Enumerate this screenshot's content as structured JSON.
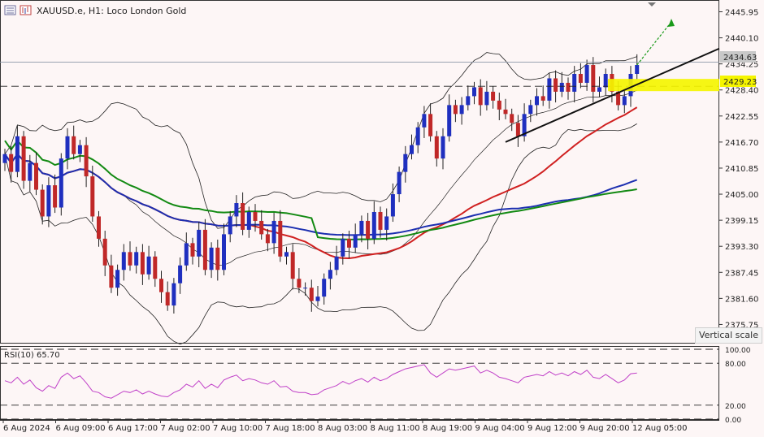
{
  "header": {
    "title": "XAUUSD.e, H1:  Loco London Gold"
  },
  "tooltip": "Vertical scale",
  "chart_data": {
    "type": "candlestick",
    "symbol": "XAUUSD.e",
    "timeframe": "H1",
    "price_axis": {
      "ticks": [
        "2445.95",
        "2440.10",
        "2434.25",
        "2428.40",
        "2422.55",
        "2416.70",
        "2410.85",
        "2405.00",
        "2399.15",
        "2393.30",
        "2387.45",
        "2381.60",
        "2375.75"
      ],
      "ylim": [
        2372.0,
        2447.5
      ]
    },
    "current_price": "2434.63",
    "marked_level": "2429.23",
    "time_axis": [
      "6 Aug 2024",
      "6 Aug 09:00",
      "6 Aug 17:00",
      "7 Aug 02:00",
      "7 Aug 10:00",
      "7 Aug 18:00",
      "8 Aug 03:00",
      "8 Aug 11:00",
      "8 Aug 19:00",
      "9 Aug 04:00",
      "9 Aug 12:00",
      "9 Aug 20:00",
      "12 Aug 05:00"
    ],
    "close": [
      2414,
      2410,
      2418,
      2408,
      2412,
      2406,
      2400,
      2407,
      2402,
      2413,
      2418,
      2414,
      2416,
      2409,
      2400,
      2395,
      2389,
      2384,
      2388,
      2392,
      2389,
      2392,
      2387,
      2391,
      2386,
      2383,
      2380,
      2385,
      2389,
      2394,
      2391,
      2397,
      2388,
      2393,
      2388,
      2396,
      2400,
      2403,
      2397,
      2401,
      2399,
      2396,
      2394,
      2399,
      2391,
      2392,
      2386,
      2384,
      2384,
      2381,
      2382,
      2386,
      2388,
      2391,
      2395,
      2393,
      2396,
      2399,
      2395,
      2401,
      2397,
      2400,
      2405,
      2410,
      2414,
      2416,
      2420,
      2423,
      2418,
      2413,
      2418,
      2425,
      2423,
      2425,
      2427,
      2429,
      2425,
      2428,
      2426,
      2424,
      2423,
      2421,
      2418,
      2423,
      2425,
      2427,
      2426,
      2431,
      2428,
      2430,
      2428,
      2432,
      2430,
      2434,
      2428,
      2429,
      2432,
      2428,
      2425,
      2427,
      2432,
      2434
    ],
    "rsi": {
      "label": "RSI(10) 65.70",
      "levels": [
        "100.00",
        "80.00",
        "20.00",
        "0.00"
      ],
      "values": [
        55,
        52,
        60,
        50,
        56,
        45,
        40,
        48,
        44,
        60,
        66,
        58,
        62,
        52,
        40,
        38,
        32,
        30,
        35,
        40,
        38,
        42,
        36,
        40,
        36,
        33,
        32,
        38,
        42,
        50,
        46,
        55,
        44,
        50,
        45,
        56,
        60,
        63,
        55,
        58,
        56,
        52,
        50,
        55,
        46,
        47,
        40,
        38,
        38,
        35,
        36,
        42,
        45,
        48,
        54,
        50,
        55,
        58,
        53,
        60,
        55,
        58,
        64,
        68,
        72,
        74,
        76,
        78,
        66,
        60,
        66,
        72,
        70,
        72,
        74,
        76,
        66,
        70,
        66,
        60,
        58,
        55,
        52,
        60,
        62,
        64,
        62,
        68,
        63,
        66,
        62,
        68,
        64,
        70,
        60,
        58,
        64,
        58,
        52,
        56,
        65,
        66
      ]
    }
  }
}
